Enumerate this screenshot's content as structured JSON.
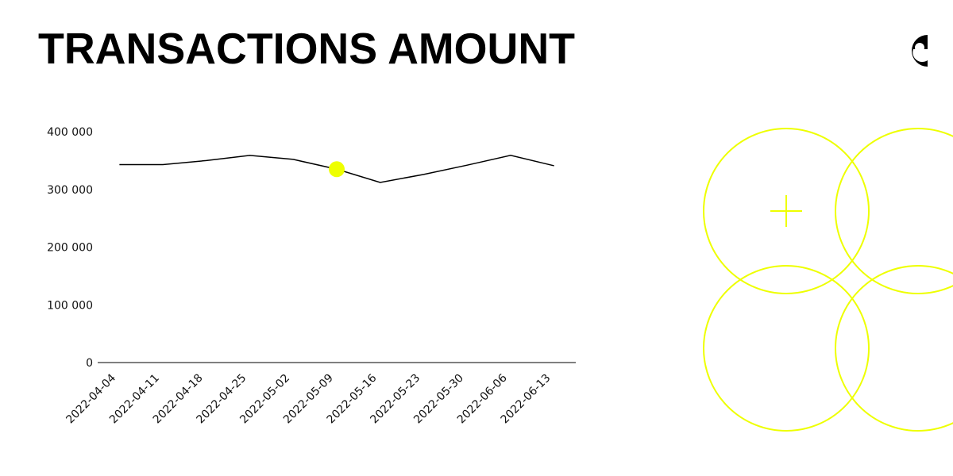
{
  "chart_data": {
    "type": "line",
    "title": "TRANSACTIONS AMOUNT",
    "categories": [
      "2022-04-04",
      "2022-04-11",
      "2022-04-18",
      "2022-04-25",
      "2022-05-02",
      "2022-05-09",
      "2022-05-16",
      "2022-05-23",
      "2022-05-30",
      "2022-06-06",
      "2022-06-13"
    ],
    "series": [
      {
        "color": "#000000",
        "values": [
          343000,
          343000,
          350000,
          359000,
          352000,
          335000,
          312000,
          326000,
          342000,
          359000,
          341000
        ]
      }
    ],
    "highlight_color": "#eeff00",
    "ylim": [
      0,
      400000
    ],
    "yticks": [
      0,
      {
        "value": 100000,
        "label": "100 000"
      },
      {
        "value": 200000,
        "label": "200 000"
      },
      {
        "value": 300000,
        "label": "300 000"
      },
      {
        "value": 400000,
        "label": "400 000"
      }
    ],
    "grid": false
  }
}
